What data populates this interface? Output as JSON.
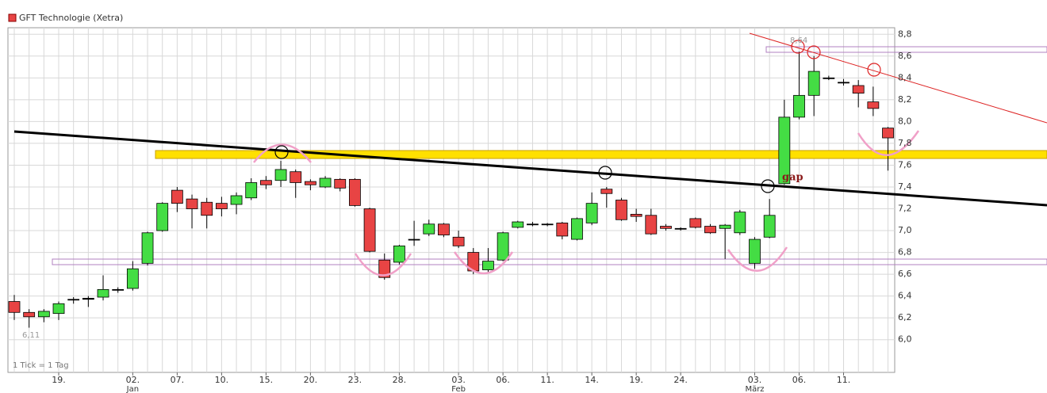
{
  "chart_data": {
    "type": "candlestick",
    "title": "GFT Technologie (Xetra)",
    "footnote": "1 Tick = 1 Tag",
    "up_color": "#44dd44",
    "down_color": "#e84444",
    "annotations": [
      "8,64",
      "6,11",
      "gap"
    ],
    "ylim": [
      5.7,
      8.86
    ],
    "yticks": [
      {
        "value": 6.0,
        "label": "6,0"
      },
      {
        "value": 6.2,
        "label": "6,2"
      },
      {
        "value": 6.4,
        "label": "6,4"
      },
      {
        "value": 6.6,
        "label": "6,6"
      },
      {
        "value": 6.8,
        "label": "6,8"
      },
      {
        "value": 7.0,
        "label": "7,0"
      },
      {
        "value": 7.2,
        "label": "7,2"
      },
      {
        "value": 7.4,
        "label": "7,4"
      },
      {
        "value": 7.6,
        "label": "7,6"
      },
      {
        "value": 7.8,
        "label": "7,8"
      },
      {
        "value": 8.0,
        "label": "8,0"
      },
      {
        "value": 8.2,
        "label": "8,2"
      },
      {
        "value": 8.4,
        "label": "8,4"
      },
      {
        "value": 8.6,
        "label": "8,6"
      },
      {
        "value": 8.8,
        "label": "8,8"
      }
    ],
    "grid": true,
    "categories": [
      null,
      null,
      null,
      "19.",
      null,
      null,
      null,
      null,
      "02.",
      null,
      null,
      "07.",
      null,
      null,
      "10.",
      null,
      null,
      "15.",
      null,
      null,
      "20.",
      null,
      null,
      "23.",
      null,
      null,
      "28.",
      null,
      null,
      null,
      "03.",
      null,
      null,
      "06.",
      null,
      null,
      "11.",
      null,
      null,
      "14.",
      null,
      null,
      "19.",
      null,
      null,
      "24.",
      null,
      null,
      null,
      null,
      "03.",
      null,
      null,
      "06.",
      null,
      null,
      "11.",
      null,
      null,
      null
    ],
    "month_labels": [
      null,
      null,
      null,
      null,
      null,
      null,
      null,
      null,
      "Jan",
      null,
      null,
      null,
      null,
      null,
      null,
      null,
      null,
      null,
      null,
      null,
      null,
      null,
      null,
      null,
      null,
      null,
      null,
      null,
      null,
      null,
      "Feb",
      null,
      null,
      null,
      null,
      null,
      null,
      null,
      null,
      null,
      null,
      null,
      null,
      null,
      null,
      null,
      null,
      null,
      null,
      null,
      "März",
      null,
      null,
      null,
      null,
      null,
      null,
      null,
      null,
      null
    ],
    "open": [
      6.35,
      6.25,
      6.21,
      6.24,
      6.37,
      6.37,
      6.39,
      6.46,
      6.47,
      6.7,
      7.0,
      7.37,
      7.29,
      7.26,
      7.25,
      7.24,
      7.3,
      7.46,
      7.46,
      7.54,
      7.45,
      7.4,
      7.47,
      7.47,
      7.2,
      6.73,
      6.71,
      6.92,
      6.97,
      7.06,
      6.94,
      6.8,
      6.64,
      6.73,
      7.03,
      7.06,
      7.06,
      7.07,
      6.92,
      7.07,
      7.38,
      7.28,
      7.15,
      7.14,
      7.04,
      7.02,
      7.11,
      7.04,
      7.02,
      6.98,
      6.7,
      6.94,
      7.43,
      8.04,
      8.24,
      8.4,
      8.36,
      8.33,
      8.18,
      7.94
    ],
    "high": [
      6.41,
      6.28,
      6.28,
      6.35,
      6.39,
      6.4,
      6.59,
      6.48,
      6.72,
      6.99,
      7.26,
      7.4,
      7.33,
      7.3,
      7.31,
      7.35,
      7.48,
      7.5,
      7.64,
      7.56,
      7.47,
      7.5,
      7.48,
      7.48,
      7.21,
      6.79,
      6.87,
      7.09,
      7.1,
      7.07,
      7.0,
      6.84,
      6.84,
      6.99,
      7.09,
      7.08,
      7.07,
      7.08,
      7.12,
      7.35,
      7.4,
      7.3,
      7.2,
      7.2,
      7.06,
      7.03,
      7.12,
      7.06,
      7.06,
      7.19,
      6.94,
      7.29,
      8.2,
      8.64,
      8.6,
      8.42,
      8.39,
      8.38,
      8.32,
      7.95
    ],
    "low": [
      6.18,
      6.11,
      6.16,
      6.18,
      6.33,
      6.3,
      6.36,
      6.43,
      6.45,
      6.68,
      6.99,
      7.17,
      7.02,
      7.02,
      7.13,
      7.15,
      7.28,
      7.38,
      7.4,
      7.3,
      7.37,
      7.39,
      7.36,
      7.22,
      6.8,
      6.55,
      6.69,
      6.86,
      6.95,
      6.94,
      6.84,
      6.6,
      6.61,
      6.72,
      7.02,
      7.04,
      7.04,
      6.92,
      6.91,
      7.05,
      7.21,
      7.09,
      7.08,
      6.96,
      7.0,
      7.0,
      7.02,
      6.97,
      6.74,
      6.96,
      6.65,
      6.93,
      7.42,
      8.02,
      8.05,
      8.38,
      8.33,
      8.13,
      8.05,
      7.55
    ],
    "close": [
      6.25,
      6.21,
      6.26,
      6.33,
      6.37,
      6.38,
      6.46,
      6.46,
      6.65,
      6.98,
      7.25,
      7.25,
      7.2,
      7.14,
      7.2,
      7.32,
      7.44,
      7.42,
      7.56,
      7.44,
      7.42,
      7.48,
      7.39,
      7.23,
      6.81,
      6.57,
      6.86,
      6.92,
      7.06,
      6.96,
      6.86,
      6.63,
      6.72,
      6.98,
      7.08,
      7.06,
      7.06,
      6.95,
      7.11,
      7.25,
      7.34,
      7.1,
      7.13,
      6.97,
      7.02,
      7.02,
      7.03,
      6.98,
      7.05,
      7.17,
      6.92,
      7.14,
      8.04,
      8.24,
      8.46,
      8.4,
      8.36,
      8.26,
      8.12,
      7.85
    ]
  }
}
